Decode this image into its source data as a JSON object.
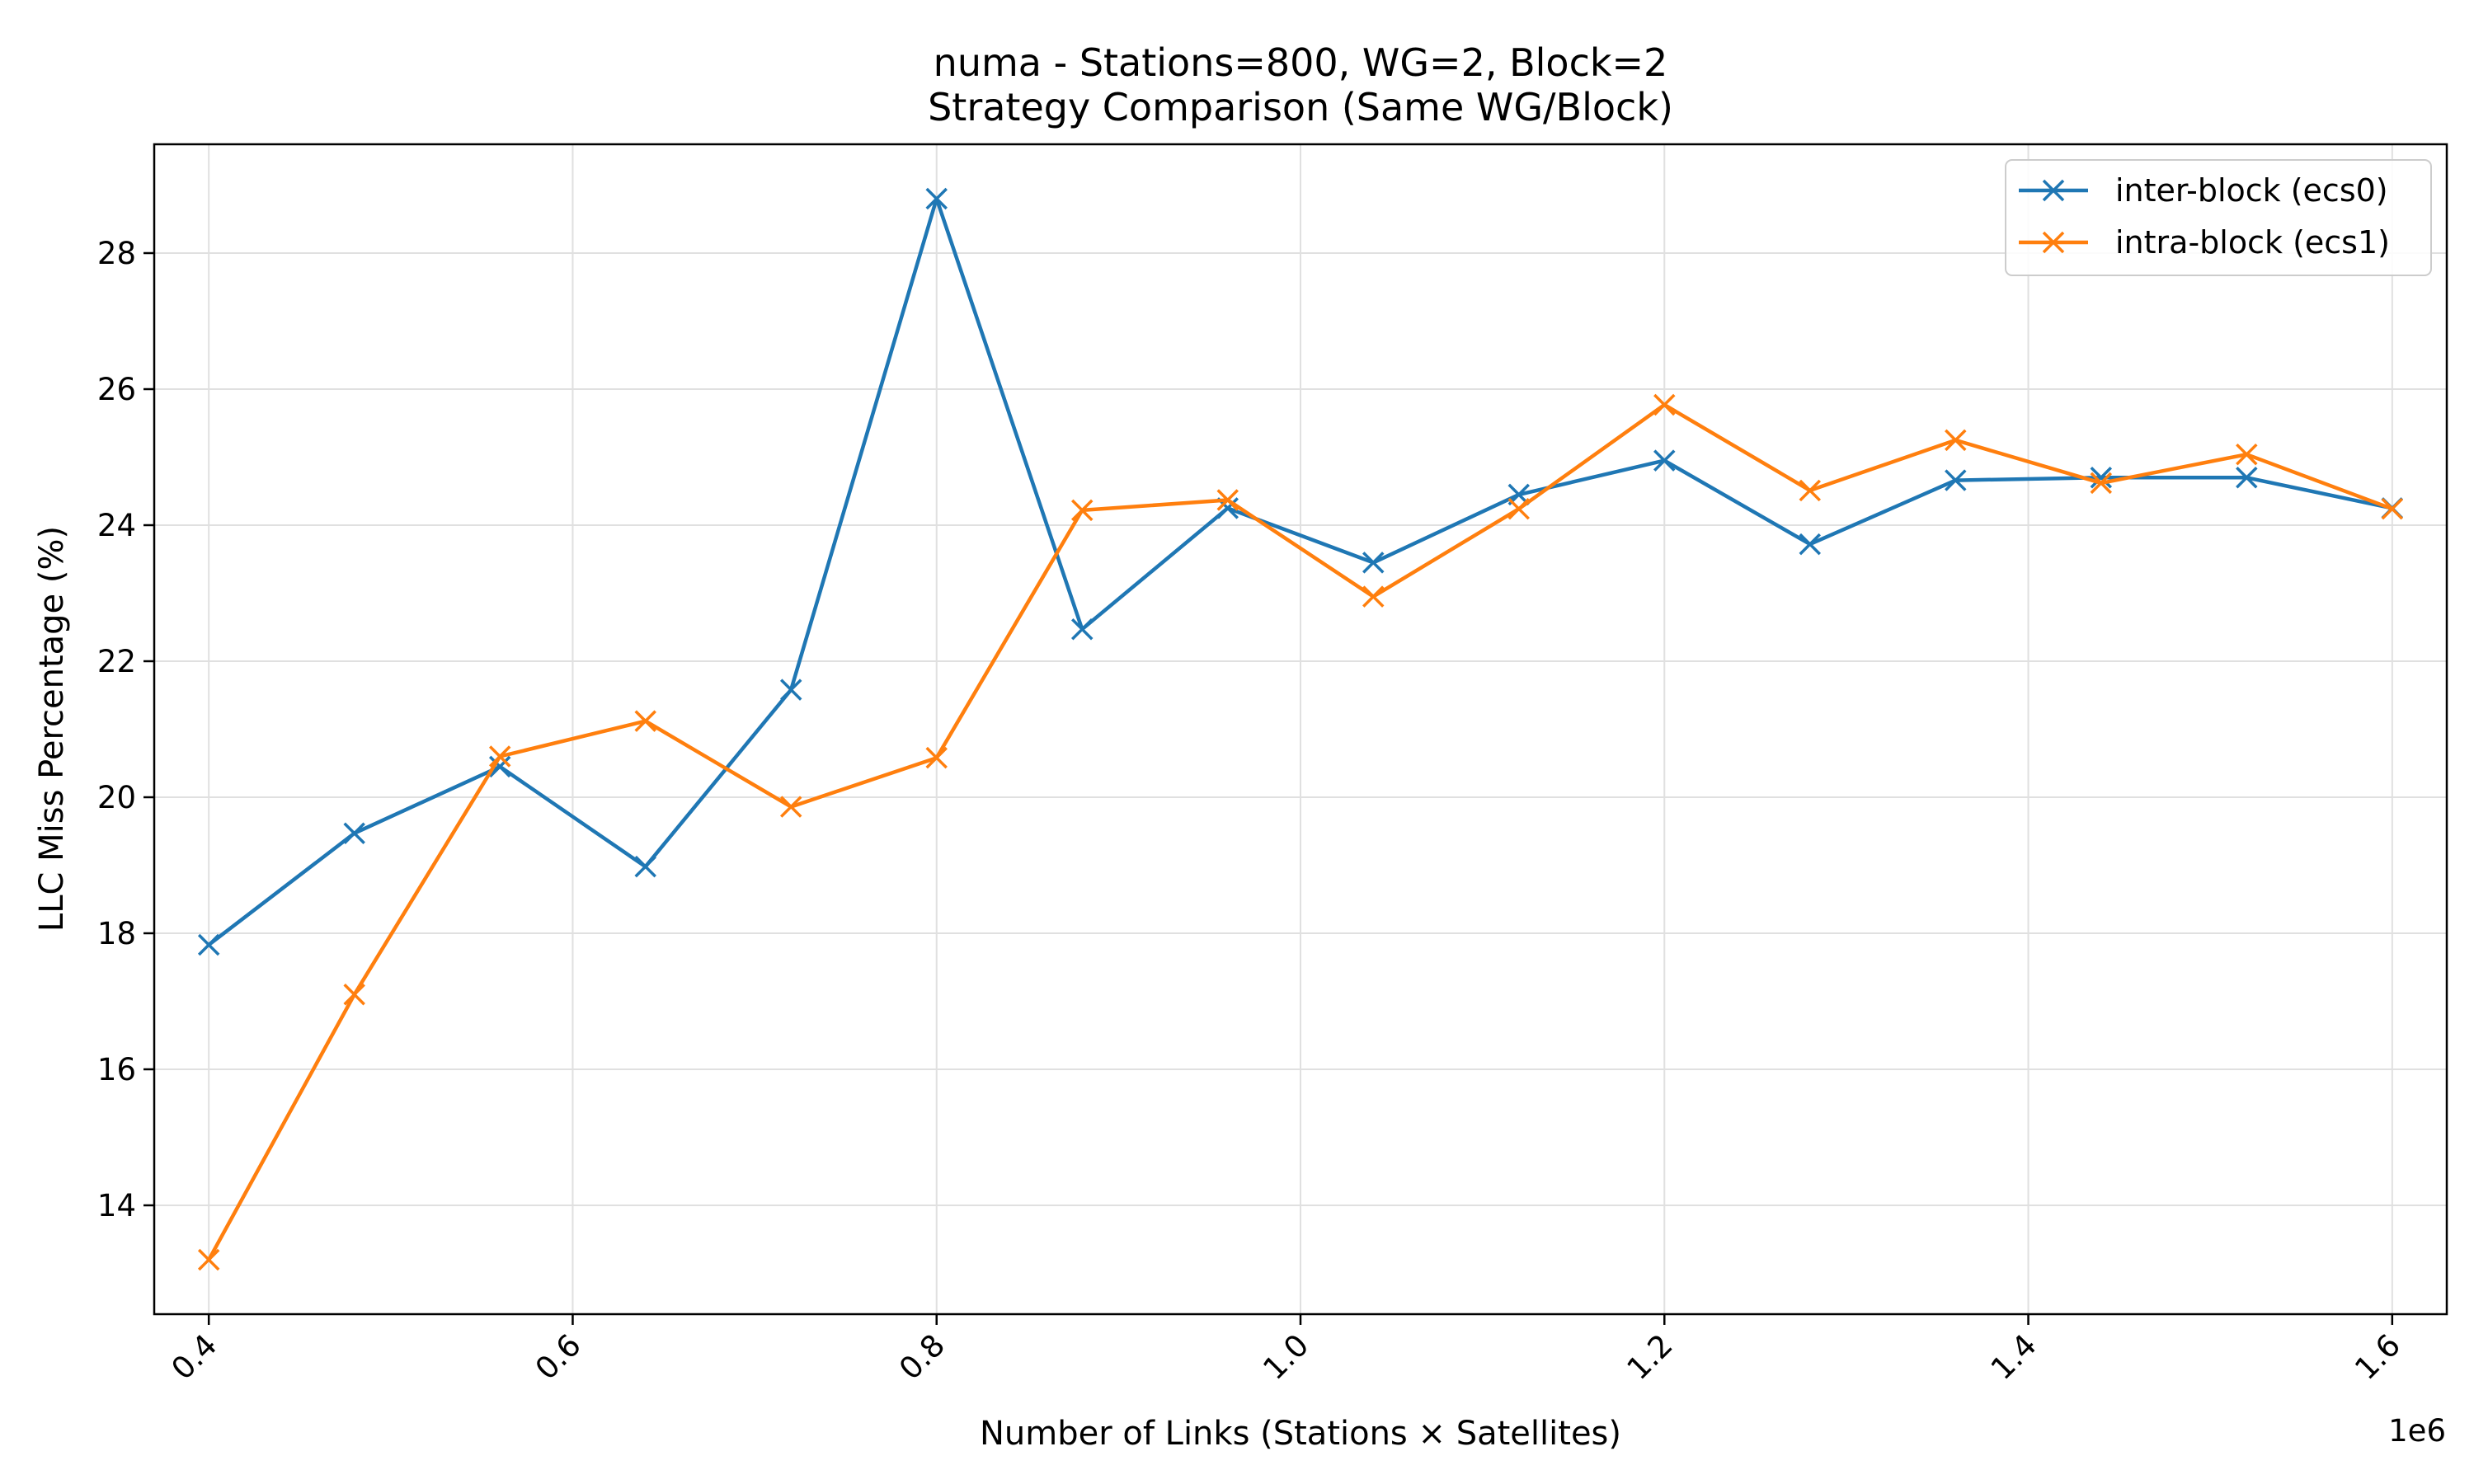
{
  "chart_data": {
    "type": "line",
    "title_line1": "numa - Stations=800, WG=2, Block=2",
    "title_line2": "Strategy Comparison (Same WG/Block)",
    "xlabel": "Number of Links (Stations × Satellites)",
    "ylabel": "LLC Miss Percentage (%)",
    "x_offset_label": "1e6",
    "x_scale_factor": 1000000,
    "xlim": [
      370000,
      1630000
    ],
    "ylim": [
      12.4,
      29.6
    ],
    "x_ticks": [
      400000,
      600000,
      800000,
      1000000,
      1200000,
      1400000,
      1600000
    ],
    "x_tick_labels": [
      "0.4",
      "0.6",
      "0.8",
      "1.0",
      "1.2",
      "1.4",
      "1.6"
    ],
    "y_ticks": [
      14,
      16,
      18,
      20,
      22,
      24,
      26,
      28
    ],
    "y_tick_labels": [
      "14",
      "16",
      "18",
      "20",
      "22",
      "24",
      "26",
      "28"
    ],
    "grid": true,
    "legend_position": "top-right",
    "x": [
      400000,
      480000,
      560000,
      640000,
      720000,
      800000,
      880000,
      960000,
      1040000,
      1120000,
      1200000,
      1280000,
      1360000,
      1440000,
      1520000,
      1600000
    ],
    "series": [
      {
        "name": "inter-block (ecs0)",
        "color": "#1f77b4",
        "marker": "x",
        "values": [
          17.83,
          19.47,
          20.45,
          18.98,
          21.58,
          28.8,
          22.47,
          24.25,
          23.45,
          24.45,
          24.95,
          23.72,
          24.66,
          24.7,
          24.7,
          24.25
        ]
      },
      {
        "name": "intra-block (ecs1)",
        "color": "#ff7f0e",
        "marker": "x",
        "values": [
          13.2,
          17.1,
          20.6,
          21.12,
          19.86,
          20.58,
          24.22,
          24.37,
          22.95,
          24.24,
          25.77,
          24.51,
          25.25,
          24.62,
          25.04,
          24.24
        ]
      }
    ]
  }
}
